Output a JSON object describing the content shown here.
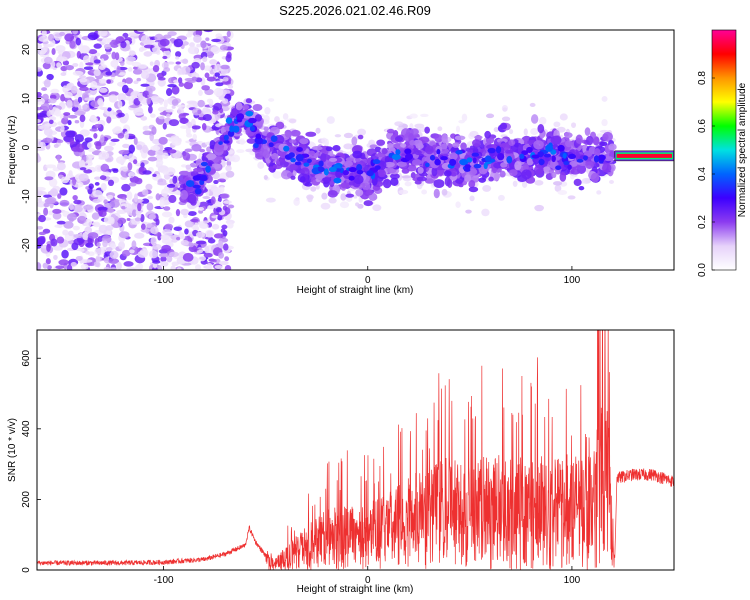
{
  "chart_data": [
    {
      "type": "heatmap",
      "title": "S225.2026.021.02.46.R09",
      "xlabel": "Height of straight line (km)",
      "ylabel": "Frequency (Hz)",
      "xlim": [
        -162,
        150
      ],
      "ylim": [
        -25,
        24
      ],
      "xticks": [
        -100,
        0,
        100
      ],
      "yticks": [
        -20,
        -10,
        0,
        10,
        20
      ],
      "colorbar": {
        "label": "Normalized spectral amplitude",
        "range": [
          0,
          1
        ],
        "ticks": [
          "0.0",
          "0.2",
          "0.4",
          "0.6",
          "0.8"
        ],
        "colormap": [
          "#ffffff",
          "#e6d2fa",
          "#8c3cf0",
          "#3c00ff",
          "#0064ff",
          "#00e1e1",
          "#00ff00",
          "#ffff00",
          "#ff9600",
          "#ff0000",
          "#ff0096"
        ]
      },
      "ridge": {
        "description_points_x": [
          -85,
          -80,
          -75,
          -70,
          -65,
          -60,
          -55,
          -50,
          -40,
          -30,
          -20,
          -10,
          -5,
          0,
          5,
          10,
          20,
          30,
          40,
          50,
          60,
          70,
          80,
          90,
          100,
          110,
          118,
          150
        ],
        "description_points_y": [
          -8,
          -5,
          -2,
          2,
          5,
          7,
          3,
          1,
          -1,
          -3,
          -4,
          -5,
          -4,
          -6,
          -4,
          -2,
          -1,
          -2,
          -3,
          -3,
          -2,
          -1,
          -2,
          -1,
          -2,
          -2,
          -2,
          -2
        ]
      },
      "band": {
        "x_start": 121,
        "x_end": 150,
        "frequency": -1.7
      }
    },
    {
      "type": "line",
      "xlabel": "Height of straight line (km)",
      "ylabel": "SNR (10 * v/v)",
      "xlim": [
        -162,
        150
      ],
      "ylim": [
        0,
        680
      ],
      "xticks": [
        -100,
        0,
        100
      ],
      "yticks": [
        0,
        200,
        400,
        600
      ],
      "series": [
        {
          "name": "SNR",
          "color": "#ee3030",
          "x": [
            -162,
            -140,
            -120,
            -100,
            -80,
            -70,
            -60,
            -58,
            -55,
            -50,
            -45,
            -40,
            -30,
            -20,
            -10,
            0,
            10,
            20,
            30,
            40,
            50,
            60,
            70,
            80,
            90,
            100,
            110,
            115,
            121,
            122,
            130,
            140,
            150
          ],
          "y": [
            20,
            20,
            20,
            22,
            30,
            45,
            70,
            120,
            80,
            40,
            30,
            60,
            110,
            150,
            170,
            160,
            200,
            230,
            260,
            280,
            270,
            290,
            280,
            300,
            270,
            290,
            280,
            680,
            30,
            260,
            270,
            270,
            250
          ]
        }
      ]
    }
  ]
}
